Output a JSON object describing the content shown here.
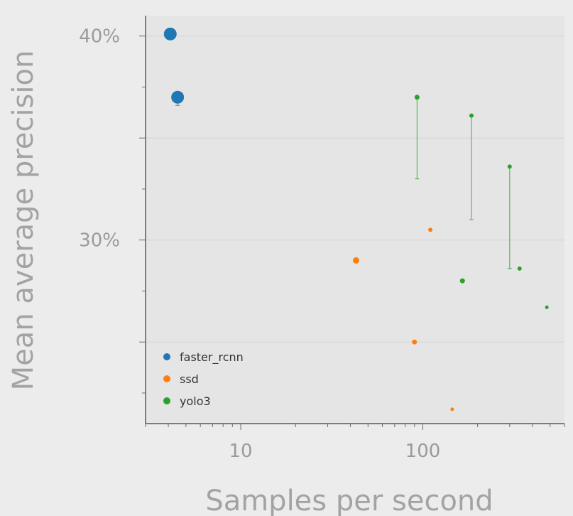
{
  "chart_data": {
    "type": "scatter",
    "title": "",
    "xlabel": "Samples per second",
    "ylabel": "Mean average precision",
    "x_scale": "log",
    "xlim": [
      3.0,
      600
    ],
    "ylim": [
      0.21,
      0.41
    ],
    "x_ticks": [
      {
        "value": 10,
        "label": "10"
      },
      {
        "value": 100,
        "label": "100"
      }
    ],
    "y_ticks": [
      {
        "value": 0.3,
        "label": "30%"
      },
      {
        "value": 0.4,
        "label": "40%"
      }
    ],
    "gridlines": [
      0.25,
      0.3,
      0.35,
      0.4
    ],
    "grid": true,
    "legend_position": "bottom-left",
    "series": [
      {
        "name": "faster_rcnn",
        "color": "#1f77b4",
        "points": [
          {
            "x": 4.1,
            "y": 0.401,
            "size": 9
          },
          {
            "x": 4.5,
            "y": 0.37,
            "size": 9,
            "err_low": 0.366,
            "err_high": 0.37
          }
        ]
      },
      {
        "name": "ssd",
        "color": "#ff7f0e",
        "points": [
          {
            "x": 43,
            "y": 0.29,
            "size": 4.5
          },
          {
            "x": 110,
            "y": 0.305,
            "size": 3
          },
          {
            "x": 90,
            "y": 0.25,
            "size": 3.5
          },
          {
            "x": 145,
            "y": 0.217,
            "size": 2.5
          }
        ]
      },
      {
        "name": "yolo3",
        "color": "#2ca02c",
        "points": [
          {
            "x": 93,
            "y": 0.37,
            "size": 3.5,
            "err_low": 0.33,
            "err_high": 0.37
          },
          {
            "x": 185,
            "y": 0.361,
            "size": 3,
            "err_low": 0.31,
            "err_high": 0.361
          },
          {
            "x": 300,
            "y": 0.336,
            "size": 3,
            "err_low": 0.286,
            "err_high": 0.336
          },
          {
            "x": 165,
            "y": 0.28,
            "size": 3.5
          },
          {
            "x": 340,
            "y": 0.286,
            "size": 3
          },
          {
            "x": 480,
            "y": 0.267,
            "size": 2.5
          }
        ]
      }
    ]
  }
}
